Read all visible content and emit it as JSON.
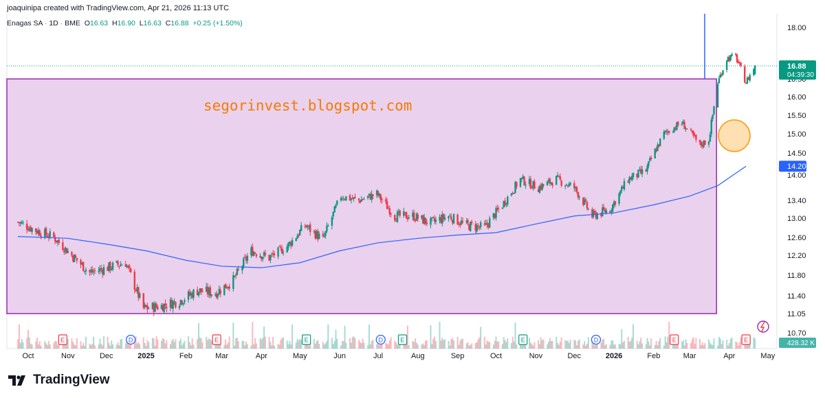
{
  "attribution": "joaquinipa created with TradingView.com, Apr 21, 2026 11:13 UTC",
  "legend": {
    "symbol": "Enagas SA",
    "interval": "1D",
    "exchange": "BME",
    "open_label": "O",
    "open": "16.63",
    "high_label": "H",
    "high": "16.90",
    "low_label": "L",
    "low": "16.63",
    "close_label": "C",
    "close": "16.88",
    "change": "+0.25 (+1.50%)"
  },
  "watermark": "segorinvest.blogspot.com",
  "brand": "TradingView",
  "colors": {
    "up": "#089981",
    "down": "#f23645",
    "ma": "#2962ff",
    "box_fill": "#e1bee7",
    "box_border": "#9c27b0",
    "circle": "#ff9800",
    "price_badge": "#089981",
    "ma_badge": "#2962ff"
  },
  "chart_data": {
    "type": "candlestick",
    "price_axis_ticks": [
      "18.00",
      "16.50",
      "16.00",
      "15.50",
      "15.00",
      "14.50",
      "14.00",
      "13.40",
      "13.00",
      "12.60",
      "12.20",
      "11.80",
      "11.40",
      "11.05",
      "10.70"
    ],
    "time_axis_labels": [
      "Oct",
      "Nov",
      "Dec",
      "2025",
      "Feb",
      "Mar",
      "Apr",
      "May",
      "Jun",
      "Jul",
      "Aug",
      "Sep",
      "Oct",
      "Nov",
      "Dec",
      "2026",
      "Feb",
      "Mar",
      "Apr",
      "May"
    ],
    "price_badge": {
      "value": "16.88",
      "countdown": "04:39:30"
    },
    "ma_badge": "14.20",
    "volume_badge": "428.32 K",
    "range_box": {
      "top": 16.5,
      "bottom": 11.05
    },
    "closes": [
      [
        "2024-09-23",
        12.92
      ],
      [
        "2024-10-07",
        12.75
      ],
      [
        "2024-10-21",
        12.6
      ],
      [
        "2024-11-04",
        12.2
      ],
      [
        "2024-11-18",
        11.85
      ],
      [
        "2024-12-02",
        11.95
      ],
      [
        "2024-12-16",
        12.05
      ],
      [
        "2024-12-30",
        11.15
      ],
      [
        "2025-01-13",
        11.2
      ],
      [
        "2025-01-27",
        11.3
      ],
      [
        "2025-02-10",
        11.5
      ],
      [
        "2025-02-24",
        11.45
      ],
      [
        "2025-03-10",
        11.7
      ],
      [
        "2025-03-24",
        12.3
      ],
      [
        "2025-04-07",
        12.15
      ],
      [
        "2025-04-21",
        12.4
      ],
      [
        "2025-05-05",
        12.85
      ],
      [
        "2025-05-19",
        12.55
      ],
      [
        "2025-06-02",
        13.5
      ],
      [
        "2025-06-16",
        13.4
      ],
      [
        "2025-06-30",
        13.55
      ],
      [
        "2025-07-14",
        13.05
      ],
      [
        "2025-07-28",
        13.05
      ],
      [
        "2025-08-11",
        12.9
      ],
      [
        "2025-08-25",
        13.05
      ],
      [
        "2025-09-08",
        12.85
      ],
      [
        "2025-09-22",
        12.8
      ],
      [
        "2025-10-06",
        13.3
      ],
      [
        "2025-10-20",
        13.9
      ],
      [
        "2025-11-03",
        13.7
      ],
      [
        "2025-11-17",
        13.9
      ],
      [
        "2025-12-01",
        13.7
      ],
      [
        "2025-12-15",
        13.05
      ],
      [
        "2025-12-29",
        13.2
      ],
      [
        "2026-01-12",
        13.9
      ],
      [
        "2026-01-26",
        14.1
      ],
      [
        "2026-02-09",
        15.0
      ],
      [
        "2026-02-23",
        15.3
      ],
      [
        "2026-03-09",
        14.7
      ],
      [
        "2026-03-16",
        14.85
      ],
      [
        "2026-03-23",
        16.4
      ],
      [
        "2026-03-30",
        17.1
      ],
      [
        "2026-04-06",
        17.15
      ],
      [
        "2026-04-14",
        16.4
      ],
      [
        "2026-04-21",
        16.88
      ]
    ],
    "ma200": [
      [
        "2024-09-23",
        12.62
      ],
      [
        "2024-11-01",
        12.58
      ],
      [
        "2024-12-01",
        12.45
      ],
      [
        "2025-01-01",
        12.3
      ],
      [
        "2025-02-01",
        12.1
      ],
      [
        "2025-03-01",
        11.98
      ],
      [
        "2025-04-01",
        11.95
      ],
      [
        "2025-05-01",
        12.05
      ],
      [
        "2025-06-01",
        12.3
      ],
      [
        "2025-07-01",
        12.48
      ],
      [
        "2025-08-01",
        12.58
      ],
      [
        "2025-09-01",
        12.65
      ],
      [
        "2025-10-01",
        12.7
      ],
      [
        "2025-11-01",
        12.88
      ],
      [
        "2025-12-01",
        13.05
      ],
      [
        "2026-01-01",
        13.12
      ],
      [
        "2026-02-01",
        13.3
      ],
      [
        "2026-03-01",
        13.5
      ],
      [
        "2026-03-23",
        13.75
      ],
      [
        "2026-04-14",
        14.2
      ]
    ],
    "events": [
      {
        "type": "E",
        "date": "2024-10-28"
      },
      {
        "type": "D",
        "date": "2024-12-20"
      },
      {
        "type": "E",
        "date": "2025-02-25"
      },
      {
        "type": "E",
        "date": "2025-05-06"
      },
      {
        "type": "D",
        "date": "2025-07-03"
      },
      {
        "type": "E",
        "date": "2025-07-20"
      },
      {
        "type": "E",
        "date": "2025-10-22"
      },
      {
        "type": "D",
        "date": "2025-12-18"
      },
      {
        "type": "E",
        "date": "2026-02-17"
      },
      {
        "type": "E",
        "date": "2026-04-14"
      }
    ]
  }
}
